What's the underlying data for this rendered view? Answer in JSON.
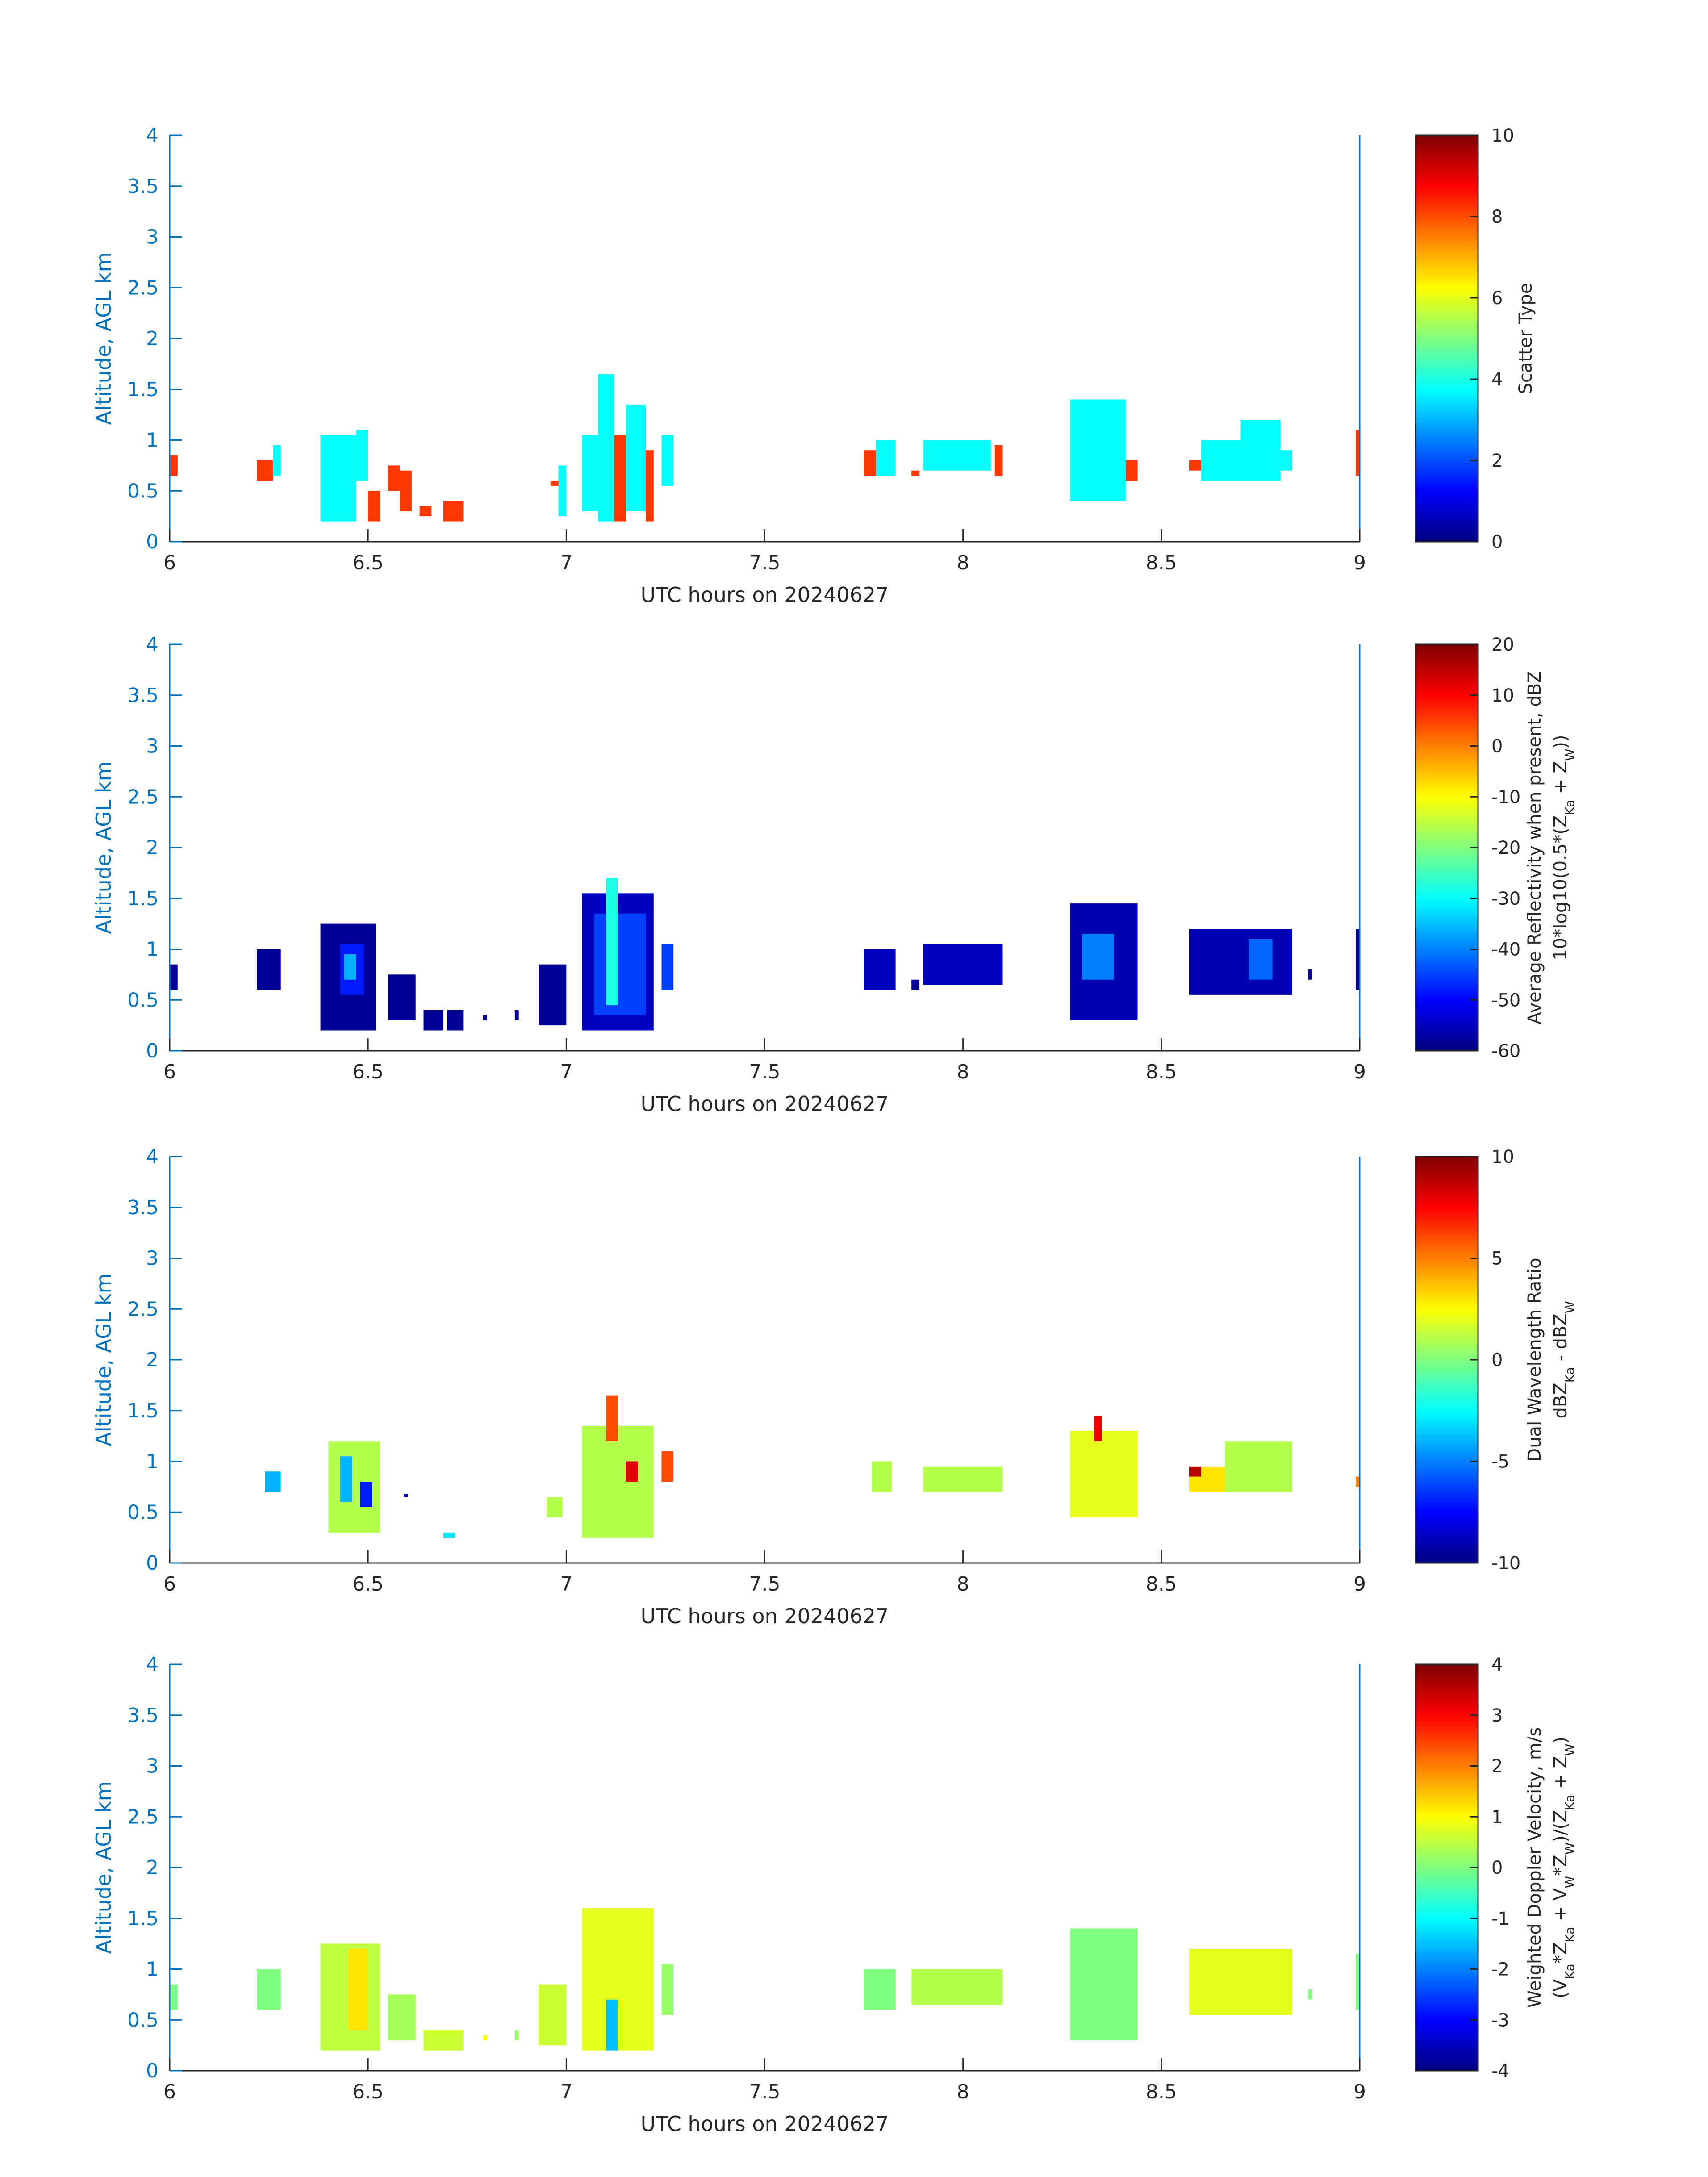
{
  "figure": {
    "type": "heatmap-panels",
    "panel_count": 4
  },
  "colors": {
    "axis": "#0072bd",
    "text": "#262626",
    "colorbar_border": "#262626"
  },
  "chart_data": [
    {
      "type": "heatmap",
      "xlabel": "UTC hours on 20240627",
      "ylabel": "Altitude, AGL km",
      "xlim": [
        6,
        9
      ],
      "ylim": [
        0,
        4
      ],
      "xticks": [
        "6",
        "6.5",
        "7",
        "7.5",
        "8",
        "8.5",
        "9"
      ],
      "yticks": [
        "0",
        "0.5",
        "1",
        "1.5",
        "2",
        "2.5",
        "3",
        "3.5",
        "4"
      ],
      "colorbar": {
        "label": [
          "Scatter Type"
        ],
        "clim": [
          0,
          10
        ],
        "ticks": [
          "0",
          "2",
          "4",
          "6",
          "8",
          "10"
        ]
      },
      "regions": [
        {
          "x": [
            6.0,
            6.02
          ],
          "y": [
            0.65,
            0.85
          ],
          "value": 8.2
        },
        {
          "x": [
            6.22,
            6.26
          ],
          "y": [
            0.6,
            0.8
          ],
          "value": 8.2
        },
        {
          "x": [
            6.26,
            6.28
          ],
          "y": [
            0.65,
            0.95
          ],
          "value": 3.8
        },
        {
          "x": [
            6.38,
            6.47
          ],
          "y": [
            0.2,
            1.05
          ],
          "value": 3.8
        },
        {
          "x": [
            6.47,
            6.5
          ],
          "y": [
            0.6,
            1.1
          ],
          "value": 3.8
        },
        {
          "x": [
            6.5,
            6.53
          ],
          "y": [
            0.2,
            0.5
          ],
          "value": 8.2
        },
        {
          "x": [
            6.55,
            6.58
          ],
          "y": [
            0.5,
            0.75
          ],
          "value": 8.2
        },
        {
          "x": [
            6.58,
            6.61
          ],
          "y": [
            0.3,
            0.7
          ],
          "value": 8.2
        },
        {
          "x": [
            6.63,
            6.66
          ],
          "y": [
            0.25,
            0.35
          ],
          "value": 8.2
        },
        {
          "x": [
            6.69,
            6.74
          ],
          "y": [
            0.2,
            0.4
          ],
          "value": 8.2
        },
        {
          "x": [
            6.96,
            6.99
          ],
          "y": [
            0.55,
            0.6
          ],
          "value": 8.2
        },
        {
          "x": [
            6.98,
            7.0
          ],
          "y": [
            0.25,
            0.75
          ],
          "value": 3.8
        },
        {
          "x": [
            7.04,
            7.08
          ],
          "y": [
            0.3,
            1.05
          ],
          "value": 3.8
        },
        {
          "x": [
            7.08,
            7.12
          ],
          "y": [
            0.2,
            1.65
          ],
          "value": 3.8
        },
        {
          "x": [
            7.12,
            7.15
          ],
          "y": [
            0.2,
            1.05
          ],
          "value": 8.2
        },
        {
          "x": [
            7.15,
            7.2
          ],
          "y": [
            0.3,
            1.35
          ],
          "value": 3.8
        },
        {
          "x": [
            7.2,
            7.22
          ],
          "y": [
            0.2,
            0.9
          ],
          "value": 8.2
        },
        {
          "x": [
            7.24,
            7.27
          ],
          "y": [
            0.55,
            1.05
          ],
          "value": 3.8
        },
        {
          "x": [
            7.75,
            7.78
          ],
          "y": [
            0.65,
            0.9
          ],
          "value": 8.2
        },
        {
          "x": [
            7.78,
            7.83
          ],
          "y": [
            0.65,
            1.0
          ],
          "value": 3.8
        },
        {
          "x": [
            7.87,
            7.89
          ],
          "y": [
            0.65,
            0.7
          ],
          "value": 8.2
        },
        {
          "x": [
            7.9,
            8.07
          ],
          "y": [
            0.7,
            1.0
          ],
          "value": 3.8
        },
        {
          "x": [
            8.08,
            8.1
          ],
          "y": [
            0.65,
            0.95
          ],
          "value": 8.2
        },
        {
          "x": [
            8.27,
            8.41
          ],
          "y": [
            0.4,
            1.4
          ],
          "value": 3.8
        },
        {
          "x": [
            8.41,
            8.44
          ],
          "y": [
            0.6,
            0.8
          ],
          "value": 8.2
        },
        {
          "x": [
            8.57,
            8.6
          ],
          "y": [
            0.7,
            0.8
          ],
          "value": 8.2
        },
        {
          "x": [
            8.6,
            8.7
          ],
          "y": [
            0.6,
            1.0
          ],
          "value": 3.8
        },
        {
          "x": [
            8.7,
            8.8
          ],
          "y": [
            0.6,
            1.2
          ],
          "value": 3.8
        },
        {
          "x": [
            8.8,
            8.83
          ],
          "y": [
            0.7,
            0.9
          ],
          "value": 3.8
        },
        {
          "x": [
            8.99,
            9.0
          ],
          "y": [
            0.65,
            1.1
          ],
          "value": 8.2
        }
      ]
    },
    {
      "type": "heatmap",
      "xlabel": "UTC hours on 20240627",
      "ylabel": "Altitude, AGL km",
      "xlim": [
        6,
        9
      ],
      "ylim": [
        0,
        4
      ],
      "xticks": [
        "6",
        "6.5",
        "7",
        "7.5",
        "8",
        "8.5",
        "9"
      ],
      "yticks": [
        "0",
        "0.5",
        "1",
        "1.5",
        "2",
        "2.5",
        "3",
        "3.5",
        "4"
      ],
      "colorbar": {
        "label": [
          "Average Reflectivity when present, dBZ",
          "10*log10(0.5*(Z_Ka + Z_W))"
        ],
        "clim": [
          -60,
          20
        ],
        "ticks": [
          "-60",
          "-50",
          "-40",
          "-30",
          "-20",
          "-10",
          "0",
          "10",
          "20"
        ]
      },
      "regions": [
        {
          "x": [
            6.0,
            6.02
          ],
          "y": [
            0.6,
            0.85
          ],
          "value": -58
        },
        {
          "x": [
            6.22,
            6.28
          ],
          "y": [
            0.6,
            1.0
          ],
          "value": -58
        },
        {
          "x": [
            6.38,
            6.52
          ],
          "y": [
            0.2,
            1.25
          ],
          "value": -58
        },
        {
          "x": [
            6.43,
            6.49
          ],
          "y": [
            0.55,
            1.05
          ],
          "value": -48
        },
        {
          "x": [
            6.44,
            6.47
          ],
          "y": [
            0.7,
            0.95
          ],
          "value": -36
        },
        {
          "x": [
            6.55,
            6.62
          ],
          "y": [
            0.3,
            0.75
          ],
          "value": -58
        },
        {
          "x": [
            6.64,
            6.69
          ],
          "y": [
            0.2,
            0.4
          ],
          "value": -58
        },
        {
          "x": [
            6.7,
            6.74
          ],
          "y": [
            0.2,
            0.4
          ],
          "value": -58
        },
        {
          "x": [
            6.79,
            6.8
          ],
          "y": [
            0.3,
            0.35
          ],
          "value": -58
        },
        {
          "x": [
            6.87,
            6.88
          ],
          "y": [
            0.3,
            0.4
          ],
          "value": -58
        },
        {
          "x": [
            6.93,
            7.0
          ],
          "y": [
            0.25,
            0.85
          ],
          "value": -58
        },
        {
          "x": [
            7.04,
            7.22
          ],
          "y": [
            0.2,
            1.55
          ],
          "value": -55
        },
        {
          "x": [
            7.07,
            7.2
          ],
          "y": [
            0.35,
            1.35
          ],
          "value": -45
        },
        {
          "x": [
            7.1,
            7.13
          ],
          "y": [
            0.45,
            1.7
          ],
          "value": -28
        },
        {
          "x": [
            7.24,
            7.27
          ],
          "y": [
            0.6,
            1.05
          ],
          "value": -45
        },
        {
          "x": [
            7.75,
            7.83
          ],
          "y": [
            0.6,
            1.0
          ],
          "value": -55
        },
        {
          "x": [
            7.87,
            7.89
          ],
          "y": [
            0.6,
            0.7
          ],
          "value": -58
        },
        {
          "x": [
            7.9,
            8.1
          ],
          "y": [
            0.65,
            1.05
          ],
          "value": -55
        },
        {
          "x": [
            8.27,
            8.44
          ],
          "y": [
            0.3,
            1.45
          ],
          "value": -56
        },
        {
          "x": [
            8.3,
            8.38
          ],
          "y": [
            0.7,
            1.15
          ],
          "value": -40
        },
        {
          "x": [
            8.57,
            8.83
          ],
          "y": [
            0.55,
            1.2
          ],
          "value": -56
        },
        {
          "x": [
            8.72,
            8.78
          ],
          "y": [
            0.7,
            1.1
          ],
          "value": -42
        },
        {
          "x": [
            8.87,
            8.88
          ],
          "y": [
            0.7,
            0.8
          ],
          "value": -58
        },
        {
          "x": [
            8.99,
            9.0
          ],
          "y": [
            0.6,
            1.2
          ],
          "value": -58
        }
      ]
    },
    {
      "type": "heatmap",
      "xlabel": "UTC hours on 20240627",
      "ylabel": "Altitude, AGL km",
      "xlim": [
        6,
        9
      ],
      "ylim": [
        0,
        4
      ],
      "xticks": [
        "6",
        "6.5",
        "7",
        "7.5",
        "8",
        "8.5",
        "9"
      ],
      "yticks": [
        "0",
        "0.5",
        "1",
        "1.5",
        "2",
        "2.5",
        "3",
        "3.5",
        "4"
      ],
      "colorbar": {
        "label": [
          "Dual Wavelength Ratio",
          "dBZ_Ka - dBZ_W"
        ],
        "clim": [
          -10,
          10
        ],
        "ticks": [
          "-10",
          "-5",
          "0",
          "5",
          "10"
        ]
      },
      "regions": [
        {
          "x": [
            6.24,
            6.28
          ],
          "y": [
            0.7,
            0.9
          ],
          "value": -4
        },
        {
          "x": [
            6.4,
            6.53
          ],
          "y": [
            0.3,
            1.2
          ],
          "value": 1
        },
        {
          "x": [
            6.43,
            6.46
          ],
          "y": [
            0.6,
            1.05
          ],
          "value": -4
        },
        {
          "x": [
            6.48,
            6.51
          ],
          "y": [
            0.55,
            0.8
          ],
          "value": -7
        },
        {
          "x": [
            6.59,
            6.6
          ],
          "y": [
            0.65,
            0.68
          ],
          "value": -9
        },
        {
          "x": [
            6.69,
            6.72
          ],
          "y": [
            0.25,
            0.3
          ],
          "value": -3
        },
        {
          "x": [
            6.95,
            6.99
          ],
          "y": [
            0.45,
            0.65
          ],
          "value": 1
        },
        {
          "x": [
            7.04,
            7.22
          ],
          "y": [
            0.25,
            1.35
          ],
          "value": 1
        },
        {
          "x": [
            7.1,
            7.13
          ],
          "y": [
            1.2,
            1.65
          ],
          "value": 6
        },
        {
          "x": [
            7.15,
            7.18
          ],
          "y": [
            0.8,
            1.0
          ],
          "value": 8
        },
        {
          "x": [
            7.24,
            7.27
          ],
          "y": [
            0.8,
            1.1
          ],
          "value": 6
        },
        {
          "x": [
            7.77,
            7.82
          ],
          "y": [
            0.7,
            1.0
          ],
          "value": 1
        },
        {
          "x": [
            7.9,
            8.1
          ],
          "y": [
            0.7,
            0.95
          ],
          "value": 1
        },
        {
          "x": [
            8.27,
            8.44
          ],
          "y": [
            0.45,
            1.3
          ],
          "value": 2
        },
        {
          "x": [
            8.33,
            8.35
          ],
          "y": [
            1.2,
            1.45
          ],
          "value": 8
        },
        {
          "x": [
            8.57,
            8.66
          ],
          "y": [
            0.7,
            0.95
          ],
          "value": 3
        },
        {
          "x": [
            8.57,
            8.6
          ],
          "y": [
            0.85,
            0.95
          ],
          "value": 9
        },
        {
          "x": [
            8.66,
            8.83
          ],
          "y": [
            0.7,
            1.2
          ],
          "value": 1
        },
        {
          "x": [
            8.99,
            9.0
          ],
          "y": [
            0.75,
            0.85
          ],
          "value": 5
        }
      ]
    },
    {
      "type": "heatmap",
      "xlabel": "UTC hours on 20240627",
      "ylabel": "Altitude, AGL km",
      "xlim": [
        6,
        9
      ],
      "ylim": [
        0,
        4
      ],
      "xticks": [
        "6",
        "6.5",
        "7",
        "7.5",
        "8",
        "8.5",
        "9"
      ],
      "yticks": [
        "0",
        "0.5",
        "1",
        "1.5",
        "2",
        "2.5",
        "3",
        "3.5",
        "4"
      ],
      "colorbar": {
        "label": [
          "Weighted Doppler Velocity, m/s",
          "(V_Ka*Z_Ka + V_W*Z_W)/(Z_Ka + Z_W)"
        ],
        "clim": [
          -4,
          4
        ],
        "ticks": [
          "-4",
          "-3",
          "-2",
          "-1",
          "0",
          "1",
          "2",
          "3",
          "4"
        ]
      },
      "regions": [
        {
          "x": [
            6.0,
            6.02
          ],
          "y": [
            0.6,
            0.85
          ],
          "value": 0
        },
        {
          "x": [
            6.22,
            6.28
          ],
          "y": [
            0.6,
            1.0
          ],
          "value": 0
        },
        {
          "x": [
            6.38,
            6.53
          ],
          "y": [
            0.2,
            1.25
          ],
          "value": 0.5
        },
        {
          "x": [
            6.45,
            6.5
          ],
          "y": [
            0.4,
            1.2
          ],
          "value": 1.2
        },
        {
          "x": [
            6.55,
            6.62
          ],
          "y": [
            0.3,
            0.75
          ],
          "value": 0.3
        },
        {
          "x": [
            6.64,
            6.74
          ],
          "y": [
            0.2,
            0.4
          ],
          "value": 0.6
        },
        {
          "x": [
            6.79,
            6.8
          ],
          "y": [
            0.3,
            0.35
          ],
          "value": 1
        },
        {
          "x": [
            6.87,
            6.88
          ],
          "y": [
            0.3,
            0.4
          ],
          "value": 0.2
        },
        {
          "x": [
            6.93,
            7.0
          ],
          "y": [
            0.25,
            0.85
          ],
          "value": 0.6
        },
        {
          "x": [
            7.04,
            7.22
          ],
          "y": [
            0.2,
            1.6
          ],
          "value": 0.8
        },
        {
          "x": [
            7.1,
            7.13
          ],
          "y": [
            0.2,
            0.7
          ],
          "value": -1.5
        },
        {
          "x": [
            7.24,
            7.27
          ],
          "y": [
            0.55,
            1.05
          ],
          "value": 0.2
        },
        {
          "x": [
            7.75,
            7.83
          ],
          "y": [
            0.6,
            1.0
          ],
          "value": 0
        },
        {
          "x": [
            7.87,
            8.1
          ],
          "y": [
            0.65,
            1.0
          ],
          "value": 0.4
        },
        {
          "x": [
            8.27,
            8.44
          ],
          "y": [
            0.3,
            1.4
          ],
          "value": 0
        },
        {
          "x": [
            8.57,
            8.83
          ],
          "y": [
            0.55,
            1.2
          ],
          "value": 0.8
        },
        {
          "x": [
            8.87,
            8.88
          ],
          "y": [
            0.7,
            0.8
          ],
          "value": 0
        },
        {
          "x": [
            8.99,
            9.0
          ],
          "y": [
            0.6,
            1.15
          ],
          "value": 0
        }
      ]
    }
  ]
}
